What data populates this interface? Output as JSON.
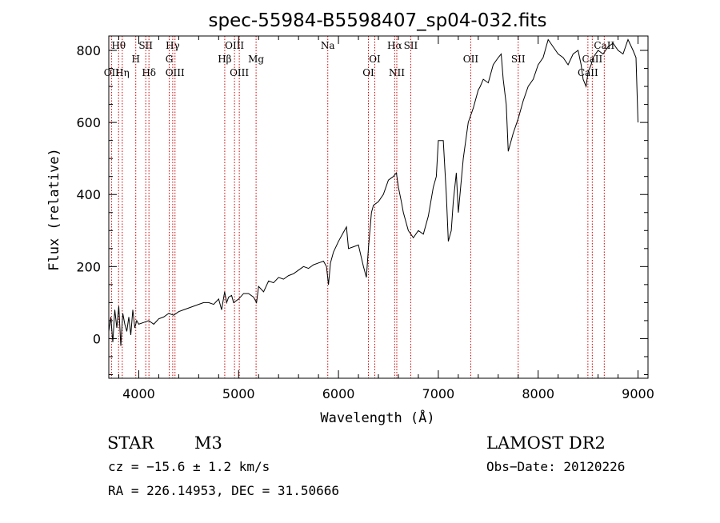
{
  "chart_data": {
    "type": "line",
    "title": "spec-55984-B5598407_sp04-032.fits",
    "xlabel": "Wavelength (Å)",
    "ylabel": "Flux (relative)",
    "xlim": [
      3700,
      9100
    ],
    "ylim": [
      -110,
      840
    ],
    "x_ticks": [
      4000,
      5000,
      6000,
      7000,
      8000,
      9000
    ],
    "y_ticks": [
      0,
      200,
      400,
      600,
      800
    ],
    "x_minor_step": 200,
    "y_minor_step": 50,
    "grid": false,
    "line_color": "#000000",
    "marker_line_color": "#cc0000",
    "series": [
      {
        "x": [
          3700,
          3720,
          3740,
          3760,
          3780,
          3800,
          3820,
          3840,
          3860,
          3880,
          3900,
          3920,
          3940,
          3960,
          3980,
          4000,
          4050,
          4100,
          4150,
          4200,
          4250,
          4300,
          4350,
          4400,
          4450,
          4500,
          4550,
          4600,
          4650,
          4700,
          4750,
          4800,
          4830,
          4860,
          4880,
          4900,
          4930,
          4950,
          5000,
          5050,
          5100,
          5150,
          5180,
          5200,
          5250,
          5300,
          5350,
          5400,
          5450,
          5500,
          5550,
          5600,
          5650,
          5700,
          5750,
          5800,
          5850,
          5880,
          5900,
          5920,
          5950,
          6000,
          6050,
          6080,
          6100,
          6150,
          6200,
          6250,
          6280,
          6300,
          6330,
          6350,
          6400,
          6450,
          6500,
          6550,
          6580,
          6600,
          6630,
          6650,
          6700,
          6750,
          6800,
          6850,
          6900,
          6950,
          6980,
          7000,
          7050,
          7080,
          7100,
          7130,
          7150,
          7180,
          7200,
          7250,
          7300,
          7350,
          7400,
          7420,
          7450,
          7500,
          7550,
          7600,
          7630,
          7650,
          7680,
          7700,
          7750,
          7800,
          7850,
          7900,
          7950,
          8000,
          8050,
          8100,
          8150,
          8200,
          8250,
          8300,
          8350,
          8400,
          8430,
          8450,
          8480,
          8500,
          8530,
          8550,
          8600,
          8650,
          8700,
          8750,
          8800,
          8850,
          8900,
          8950,
          8980,
          9000
        ],
        "y": [
          20,
          60,
          -10,
          80,
          30,
          90,
          -20,
          70,
          40,
          20,
          60,
          10,
          80,
          30,
          50,
          40,
          45,
          50,
          40,
          55,
          60,
          70,
          65,
          75,
          80,
          85,
          90,
          95,
          100,
          100,
          95,
          110,
          80,
          130,
          100,
          115,
          120,
          100,
          110,
          125,
          125,
          115,
          100,
          145,
          130,
          160,
          155,
          170,
          165,
          175,
          180,
          190,
          200,
          195,
          205,
          210,
          215,
          200,
          150,
          210,
          240,
          270,
          295,
          310,
          250,
          255,
          260,
          200,
          170,
          250,
          350,
          370,
          380,
          400,
          440,
          450,
          460,
          420,
          380,
          350,
          300,
          280,
          300,
          290,
          340,
          420,
          450,
          550,
          550,
          400,
          270,
          300,
          380,
          460,
          350,
          500,
          600,
          640,
          690,
          700,
          720,
          710,
          760,
          780,
          790,
          720,
          650,
          520,
          570,
          610,
          660,
          700,
          720,
          760,
          780,
          830,
          810,
          790,
          780,
          760,
          790,
          800,
          760,
          720,
          700,
          740,
          760,
          780,
          800,
          790,
          810,
          820,
          800,
          790,
          830,
          800,
          780,
          600
        ]
      }
    ],
    "line_markers": [
      {
        "label": "Hθ",
        "wavelength": 3798,
        "row": 0
      },
      {
        "label": "H",
        "wavelength": 3970,
        "row": 1
      },
      {
        "label": "SII",
        "wavelength": 4070,
        "row": 0
      },
      {
        "label": "Hγ",
        "wavelength": 4340,
        "row": 0
      },
      {
        "label": "G",
        "wavelength": 4305,
        "row": 1
      },
      {
        "label": "OII",
        "wavelength": 3727,
        "row": 2
      },
      {
        "label": "Hη",
        "wavelength": 3835,
        "row": 2
      },
      {
        "label": "Hδ",
        "wavelength": 4102,
        "row": 2
      },
      {
        "label": "OIII",
        "wavelength": 4363,
        "row": 2
      },
      {
        "label": "OIII",
        "wavelength": 4959,
        "row": 0
      },
      {
        "label": "Hβ",
        "wavelength": 4861,
        "row": 1
      },
      {
        "label": "OIII",
        "wavelength": 5007,
        "row": 2
      },
      {
        "label": "Mg",
        "wavelength": 5175,
        "row": 1
      },
      {
        "label": "Na",
        "wavelength": 5893,
        "row": 0
      },
      {
        "label": "OI",
        "wavelength": 6364,
        "row": 1
      },
      {
        "label": "OI",
        "wavelength": 6300,
        "row": 2
      },
      {
        "label": "Hα",
        "wavelength": 6563,
        "row": 0
      },
      {
        "label": "SII",
        "wavelength": 6724,
        "row": 0
      },
      {
        "label": "NII",
        "wavelength": 6584,
        "row": 2
      },
      {
        "label": "OII",
        "wavelength": 7325,
        "row": 1
      },
      {
        "label": "SII",
        "wavelength": 7800,
        "row": 1
      },
      {
        "label": "CaII",
        "wavelength": 8662,
        "row": 0
      },
      {
        "label": "CaII",
        "wavelength": 8542,
        "row": 1
      },
      {
        "label": "CaII",
        "wavelength": 8498,
        "row": 2
      }
    ]
  },
  "info": {
    "object_class": "STAR",
    "subclass": "M3",
    "survey": "LAMOST DR2",
    "redshift_line": "cz = −15.6 ± 1.2 km/s",
    "obs_date": "Obs−Date: 20120226",
    "coords": "RA = 226.14953, DEC =  31.50666"
  }
}
